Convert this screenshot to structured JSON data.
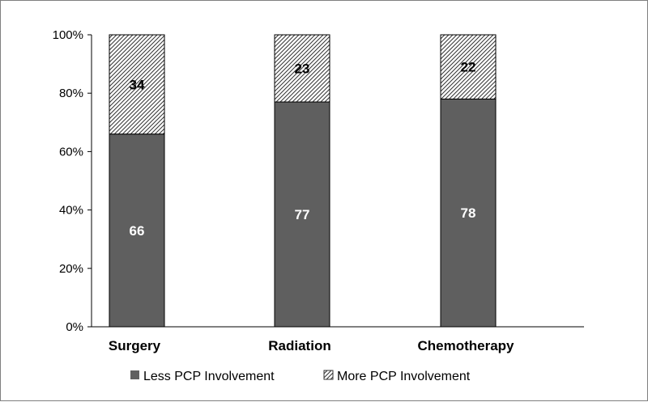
{
  "chart_data": {
    "type": "bar",
    "stacked": true,
    "percent": true,
    "categories": [
      "Surgery",
      "Radiation",
      "Chemotherapy"
    ],
    "series": [
      {
        "name": "Less PCP Involvement",
        "values": [
          66,
          77,
          78
        ],
        "color": "#5f5f5f",
        "pattern": "solid"
      },
      {
        "name": "More PCP Involvement",
        "values": [
          34,
          23,
          22
        ],
        "color": "#ffffff",
        "pattern": "diagonal-hatch"
      }
    ],
    "y_ticks": [
      "0%",
      "20%",
      "40%",
      "60%",
      "80%",
      "100%"
    ],
    "ylim": [
      0,
      100
    ],
    "grid": false,
    "legend_position": "bottom"
  }
}
